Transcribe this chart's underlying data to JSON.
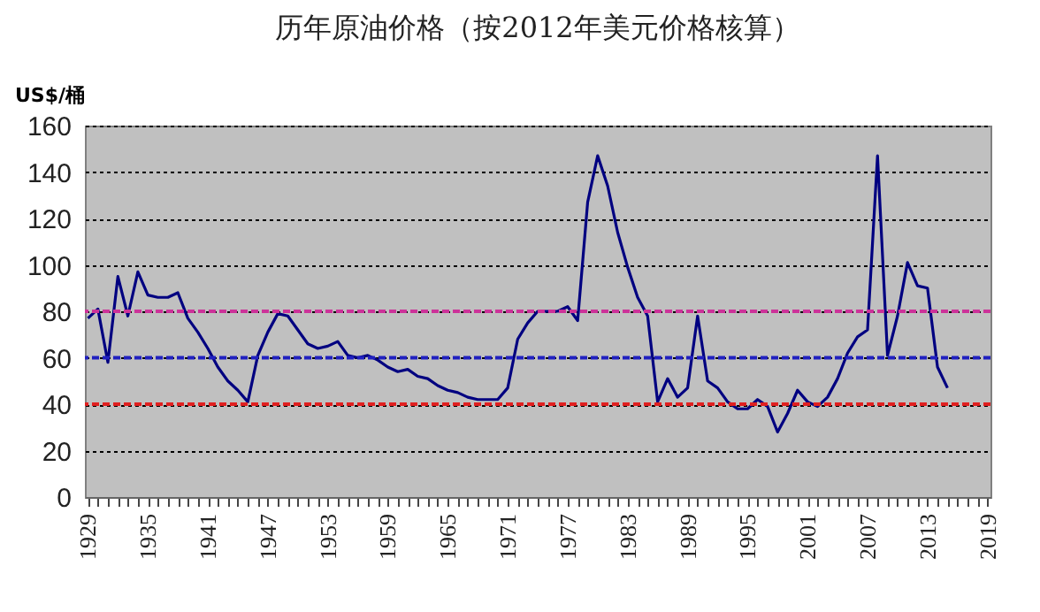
{
  "chart_data": {
    "type": "line",
    "title": "历年原油价格（按2012年美元价格核算）",
    "ylabel": "US$/桶",
    "categories": [
      "1929",
      null,
      null,
      null,
      null,
      null,
      "1935",
      null,
      null,
      null,
      null,
      null,
      "1941",
      null,
      null,
      null,
      null,
      null,
      "1947",
      null,
      null,
      null,
      null,
      null,
      "1953",
      null,
      null,
      null,
      null,
      null,
      "1959",
      null,
      null,
      null,
      null,
      null,
      "1965",
      null,
      null,
      null,
      null,
      null,
      "1971",
      null,
      null,
      null,
      null,
      null,
      "1977",
      null,
      null,
      null,
      null,
      null,
      "1983",
      null,
      null,
      null,
      null,
      null,
      "1989",
      null,
      null,
      null,
      null,
      null,
      "1995",
      null,
      null,
      null,
      null,
      null,
      "2001",
      null,
      null,
      null,
      null,
      null,
      "2007",
      null,
      null,
      null,
      null,
      null,
      "2013",
      null,
      null,
      null,
      null,
      null,
      "2019"
    ],
    "series": [
      {
        "color": "#000080",
        "values": [
          77,
          81,
          58,
          95,
          78,
          97,
          87,
          86,
          86,
          88,
          77,
          71,
          64,
          56,
          50,
          46,
          41,
          61,
          71,
          79,
          78,
          72,
          66,
          64,
          65,
          67,
          61,
          60,
          61,
          59,
          56,
          54,
          55,
          52,
          51,
          48,
          46,
          45,
          43,
          42,
          42,
          42,
          47,
          68,
          75,
          80,
          80,
          80,
          82,
          76,
          127,
          147,
          134,
          114,
          99,
          86,
          78,
          41,
          51,
          43,
          47,
          78,
          50,
          47,
          41,
          38,
          38,
          42,
          39,
          28,
          36,
          46,
          41,
          39,
          43,
          51,
          62,
          69,
          72,
          147,
          61,
          78,
          101,
          91,
          90,
          56,
          47,
          null,
          null,
          null,
          null
        ]
      }
    ],
    "ylim": [
      0,
      160
    ],
    "yticks": [
      0,
      20,
      40,
      60,
      80,
      100,
      120,
      140,
      160
    ],
    "grid": "y",
    "line_style": "solid",
    "marker": "none",
    "ref_lines": [
      {
        "axis": "y",
        "value": 80,
        "color": "#cc3399",
        "line_style": "dashed"
      },
      {
        "axis": "y",
        "value": 60,
        "color": "#2020c0",
        "line_style": "dashed"
      },
      {
        "axis": "y",
        "value": 40,
        "color": "#e02020",
        "line_style": "dashed"
      }
    ]
  }
}
